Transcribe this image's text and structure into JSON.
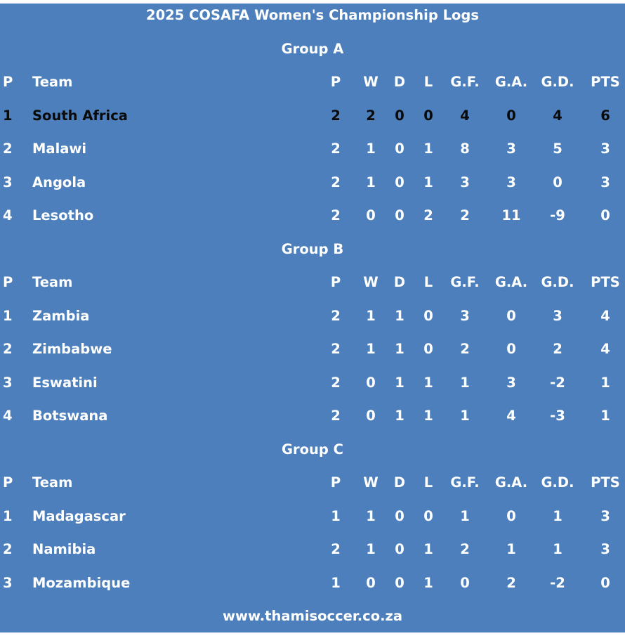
{
  "title": "2025 COSAFA Women's Championship Logs",
  "footer": "www.thamisoccer.co.za",
  "colors": {
    "background": "#4c7fbb",
    "text": "#ffffff",
    "leader_text": "#0a0a0a"
  },
  "columns": [
    "P",
    "Team",
    "P",
    "W",
    "D",
    "L",
    "G.F.",
    "G.A.",
    "G.D.",
    "PTS"
  ],
  "groups": [
    {
      "name": "Group A",
      "rows": [
        {
          "pos": "1",
          "team": "South Africa",
          "p": "2",
          "w": "2",
          "d": "0",
          "l": "0",
          "gf": "4",
          "ga": "0",
          "gd": "4",
          "pts": "6",
          "highlight": true
        },
        {
          "pos": "2",
          "team": "Malawi",
          "p": "2",
          "w": "1",
          "d": "0",
          "l": "1",
          "gf": "8",
          "ga": "3",
          "gd": "5",
          "pts": "3"
        },
        {
          "pos": "3",
          "team": "Angola",
          "p": "2",
          "w": "1",
          "d": "0",
          "l": "1",
          "gf": "3",
          "ga": "3",
          "gd": "0",
          "pts": "3"
        },
        {
          "pos": "4",
          "team": "Lesotho",
          "p": "2",
          "w": "0",
          "d": "0",
          "l": "2",
          "gf": "2",
          "ga": "11",
          "gd": "-9",
          "pts": "0"
        }
      ]
    },
    {
      "name": "Group B",
      "rows": [
        {
          "pos": "1",
          "team": "Zambia",
          "p": "2",
          "w": "1",
          "d": "1",
          "l": "0",
          "gf": "3",
          "ga": "0",
          "gd": "3",
          "pts": "4"
        },
        {
          "pos": "2",
          "team": "Zimbabwe",
          "p": "2",
          "w": "1",
          "d": "1",
          "l": "0",
          "gf": "2",
          "ga": "0",
          "gd": "2",
          "pts": "4"
        },
        {
          "pos": "3",
          "team": "Eswatini",
          "p": "2",
          "w": "0",
          "d": "1",
          "l": "1",
          "gf": "1",
          "ga": "3",
          "gd": "-2",
          "pts": "1"
        },
        {
          "pos": "4",
          "team": "Botswana",
          "p": "2",
          "w": "0",
          "d": "1",
          "l": "1",
          "gf": "1",
          "ga": "4",
          "gd": "-3",
          "pts": "1"
        }
      ]
    },
    {
      "name": "Group C",
      "rows": [
        {
          "pos": "1",
          "team": "Madagascar",
          "p": "1",
          "w": "1",
          "d": "0",
          "l": "0",
          "gf": "1",
          "ga": "0",
          "gd": "1",
          "pts": "3"
        },
        {
          "pos": "2",
          "team": "Namibia",
          "p": "2",
          "w": "1",
          "d": "0",
          "l": "1",
          "gf": "2",
          "ga": "1",
          "gd": "1",
          "pts": "3"
        },
        {
          "pos": "3",
          "team": "Mozambique",
          "p": "1",
          "w": "0",
          "d": "0",
          "l": "1",
          "gf": "0",
          "ga": "2",
          "gd": "-2",
          "pts": "0"
        }
      ]
    }
  ]
}
